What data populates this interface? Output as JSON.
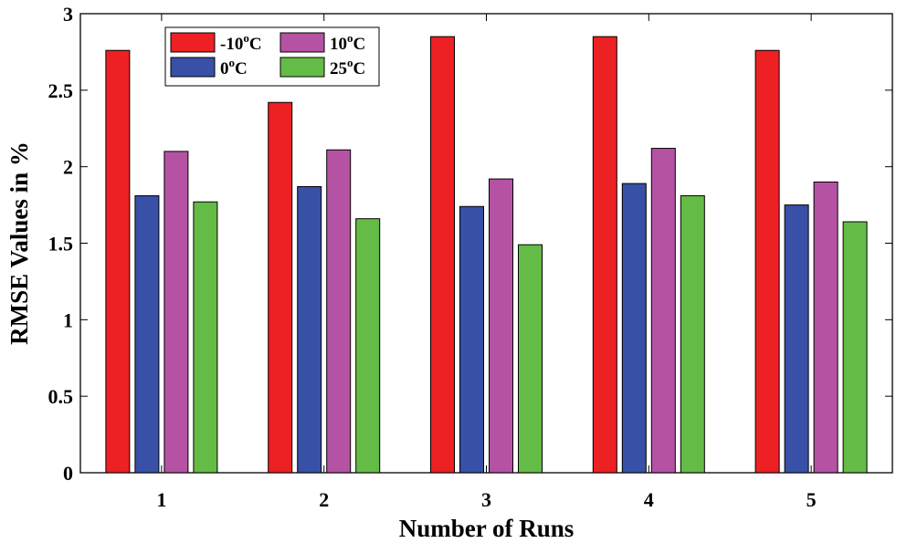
{
  "chart_data": {
    "type": "bar",
    "title": "",
    "xlabel": "Number of Runs",
    "ylabel": "RMSE Values in %",
    "categories": [
      "1",
      "2",
      "3",
      "4",
      "5"
    ],
    "ylim": [
      0,
      3
    ],
    "yticks": [
      0,
      0.5,
      1,
      1.5,
      2,
      2.5,
      3
    ],
    "ytick_labels": [
      "0",
      "0.5",
      "1",
      "1.5",
      "2",
      "2.5",
      "3"
    ],
    "grid": false,
    "legend_position": "top-left",
    "series": [
      {
        "name": "-10",
        "unit": "oC",
        "color": "#ed2024",
        "values": [
          2.76,
          2.42,
          2.85,
          2.85,
          2.76
        ]
      },
      {
        "name": "0",
        "unit": "oC",
        "color": "#3850a5",
        "values": [
          1.81,
          1.87,
          1.74,
          1.89,
          1.75
        ]
      },
      {
        "name": "10",
        "unit": "oC",
        "color": "#b552a3",
        "values": [
          2.1,
          2.11,
          1.92,
          2.12,
          1.9
        ]
      },
      {
        "name": "25",
        "unit": "oC",
        "color": "#64bb46",
        "values": [
          1.77,
          1.66,
          1.49,
          1.81,
          1.64
        ]
      }
    ]
  }
}
